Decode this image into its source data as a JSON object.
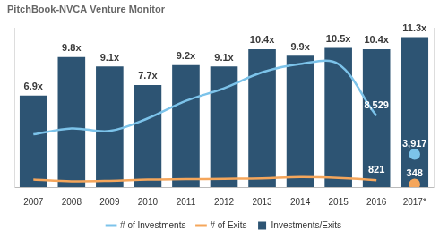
{
  "chart_data": {
    "type": "bar",
    "title": "PitchBook-NVCA Venture Monitor",
    "categories": [
      "2007",
      "2008",
      "2009",
      "2010",
      "2011",
      "2012",
      "2013",
      "2014",
      "2015",
      "2016",
      "2017*"
    ],
    "series": [
      {
        "name": "Investments/Exits",
        "type": "bar",
        "color": "#2d5473",
        "values": [
          6.9,
          9.8,
          9.1,
          7.7,
          9.2,
          9.1,
          10.4,
          9.9,
          10.5,
          10.4,
          11.3
        ],
        "value_labels": [
          "6.9x",
          "9.8x",
          "9.1x",
          "7.7x",
          "9.2x",
          "9.1x",
          "10.4x",
          "9.9x",
          "10.5x",
          "10.4x",
          "11.3x"
        ],
        "data_labels": true
      },
      {
        "name": "# of Investments",
        "type": "line",
        "color": "#7cc3ea",
        "axis": "y2",
        "values": [
          6300,
          7000,
          6700,
          8200,
          10300,
          11800,
          13700,
          14700,
          14700,
          8529,
          3917
        ],
        "value_labels": [
          null,
          null,
          null,
          null,
          null,
          null,
          null,
          null,
          null,
          "8,529",
          "3,917"
        ],
        "data_labels": true
      },
      {
        "name": "# of Exits",
        "type": "line",
        "color": "#f5a65b",
        "axis": "y2",
        "values": [
          900,
          700,
          750,
          900,
          950,
          1000,
          1050,
          1200,
          1100,
          821,
          348
        ],
        "value_labels": [
          null,
          null,
          null,
          null,
          null,
          null,
          null,
          null,
          null,
          "821",
          "348"
        ],
        "data_labels": true
      }
    ],
    "ylim": [
      0,
      12
    ],
    "y2lim": [
      0,
      19000
    ],
    "legend": "bottom",
    "tick_labels": "x",
    "grid": false
  }
}
